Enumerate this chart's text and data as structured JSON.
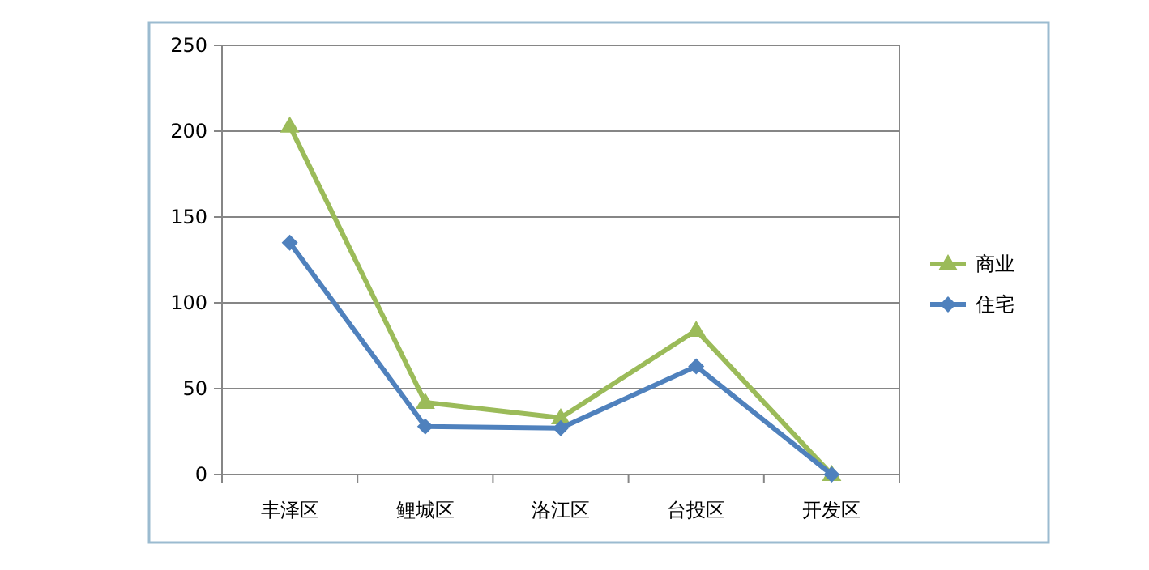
{
  "chart_data": {
    "type": "line",
    "categories": [
      "丰泽区",
      "鲤城区",
      "洛江区",
      "台投区",
      "开发区"
    ],
    "series": [
      {
        "name": "商业",
        "color": "#9bbb59",
        "marker": "triangle",
        "values": [
          203,
          42,
          33,
          84,
          0
        ]
      },
      {
        "name": "住宅",
        "color": "#4f81bd",
        "marker": "diamond",
        "values": [
          135,
          28,
          27,
          63,
          0
        ]
      }
    ],
    "ylim": [
      0,
      250
    ],
    "yticks": [
      0,
      50,
      100,
      150,
      200,
      250
    ],
    "grid": "y",
    "legend": "right"
  }
}
